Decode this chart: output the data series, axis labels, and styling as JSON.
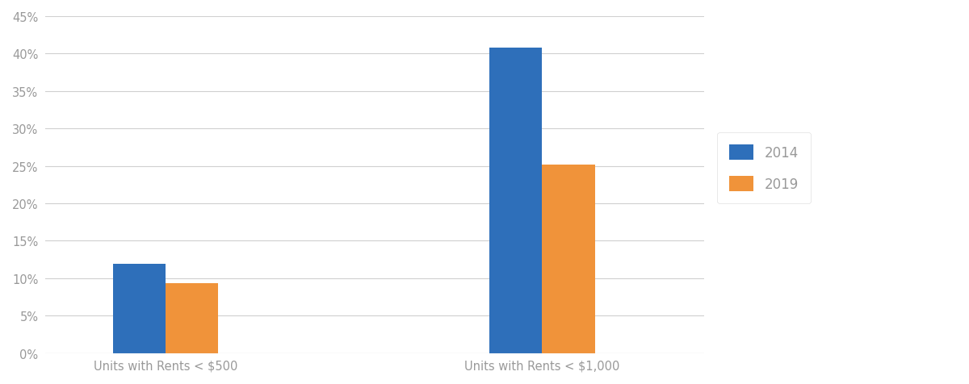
{
  "categories": [
    "Units with Rents < $500",
    "Units with Rents < $1,000"
  ],
  "series": [
    {
      "label": "2014",
      "values": [
        0.119,
        0.408
      ],
      "color": "#2e6fba"
    },
    {
      "label": "2019",
      "values": [
        0.093,
        0.252
      ],
      "color": "#f0933a"
    }
  ],
  "ylim": [
    0,
    0.45
  ],
  "yticks": [
    0.0,
    0.05,
    0.1,
    0.15,
    0.2,
    0.25,
    0.3,
    0.35,
    0.4,
    0.45
  ],
  "ytick_labels": [
    "0%",
    "5%",
    "10%",
    "15%",
    "20%",
    "25%",
    "30%",
    "35%",
    "40%",
    "45%"
  ],
  "background_color": "#ffffff",
  "grid_color": "#d0d0d0",
  "bar_width": 0.28,
  "group_positions": [
    0.5,
    2.5
  ],
  "tick_label_color": "#999999",
  "tick_label_fontsize": 10.5,
  "legend_fontsize": 12
}
